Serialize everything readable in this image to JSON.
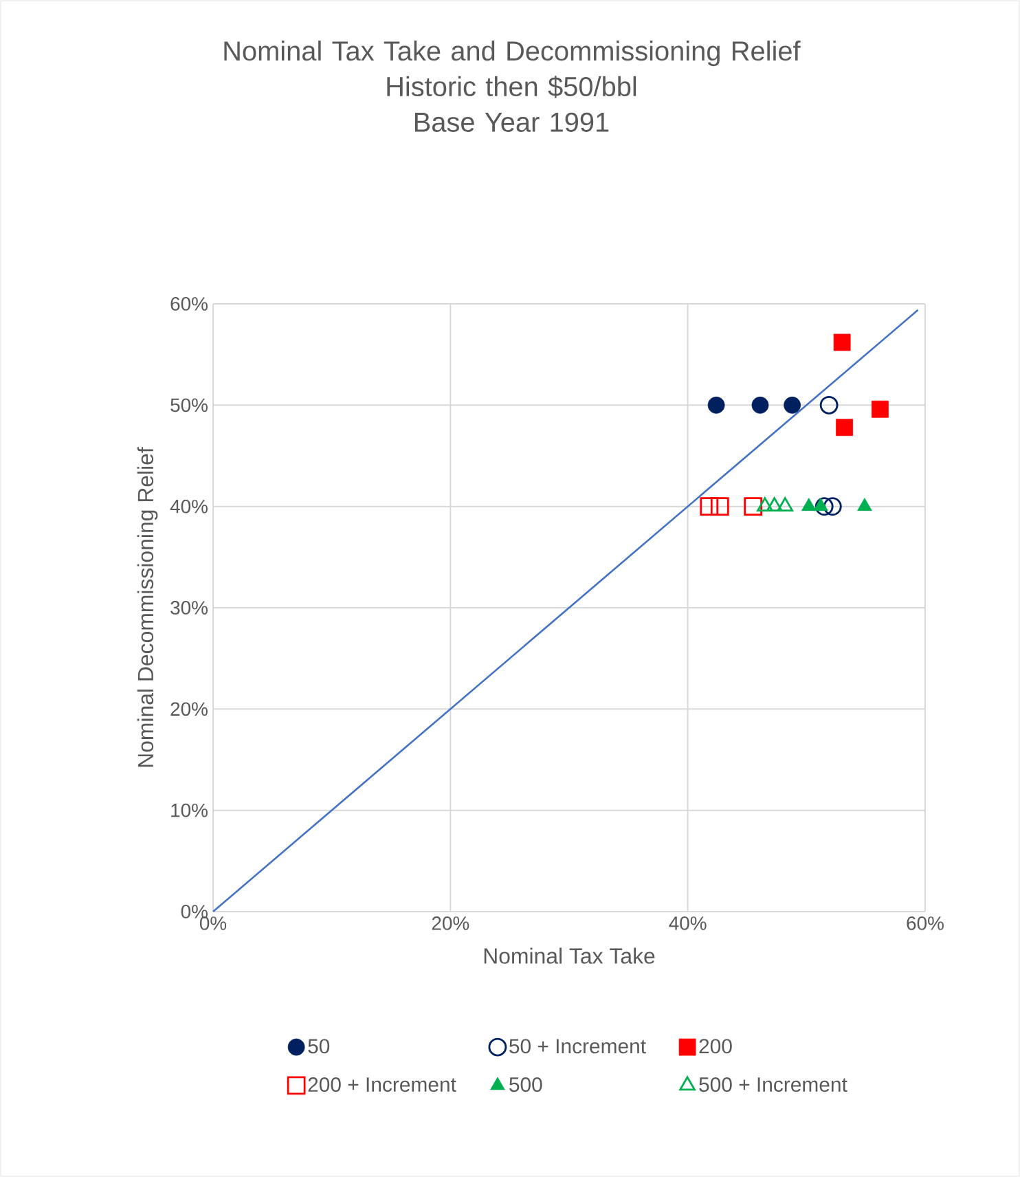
{
  "chart_data": {
    "type": "scatter",
    "title": "Nominal Tax Take and Decommissioning Relief",
    "subtitle": "Historic then $50/bbl",
    "annotations": [
      "Base Year 1991"
    ],
    "xlabel": "Nominal Tax Take",
    "ylabel": "Nominal Decommissioning Relief",
    "xlim": [
      0,
      60
    ],
    "ylim": [
      0,
      60
    ],
    "xticks": [
      {
        "value": 0,
        "label": "0%"
      },
      {
        "value": 20,
        "label": "20%"
      },
      {
        "value": 40,
        "label": "40%"
      },
      {
        "value": 60,
        "label": "60%"
      }
    ],
    "yticks": [
      {
        "value": 0,
        "label": "0%"
      },
      {
        "value": 10,
        "label": "10%"
      },
      {
        "value": 20,
        "label": "20%"
      },
      {
        "value": 30,
        "label": "30%"
      },
      {
        "value": 40,
        "label": "40%"
      },
      {
        "value": 50,
        "label": "50%"
      },
      {
        "value": 60,
        "label": "60%"
      }
    ],
    "grid": true,
    "legend": "bottom",
    "series": [
      {
        "name": "50",
        "color": "#002060",
        "marker": "circle",
        "x": [
          42.4,
          46.1,
          48.8
        ],
        "values": [
          50,
          50,
          50
        ]
      },
      {
        "name": "50 + Increment",
        "color": "#002060",
        "marker": "circle-open",
        "x": [
          51.9,
          51.5,
          52.2
        ],
        "values": [
          50,
          40,
          40
        ]
      },
      {
        "name": "200",
        "color": "#ff0000",
        "marker": "square",
        "x": [
          53.0,
          56.2,
          53.2
        ],
        "values": [
          56.2,
          49.6,
          47.8
        ]
      },
      {
        "name": "200 + Increment",
        "color": "#ff0000",
        "marker": "square-open",
        "x": [
          41.8,
          42.7,
          45.5
        ],
        "values": [
          40,
          40,
          40
        ]
      },
      {
        "name": "500",
        "color": "#00b050",
        "marker": "triangle",
        "x": [
          50.2,
          51.2,
          54.9
        ],
        "values": [
          40,
          40,
          40
        ]
      },
      {
        "name": "500 + Increment",
        "color": "#00b050",
        "marker": "triangle-open",
        "x": [
          46.5,
          47.3,
          48.2
        ],
        "values": [
          40,
          40,
          40
        ]
      },
      {
        "type": "line",
        "color": "#4472c4",
        "marker": "none",
        "line_style": "solid",
        "x": [
          0,
          59.4
        ],
        "values": [
          0,
          59.4
        ]
      }
    ]
  }
}
